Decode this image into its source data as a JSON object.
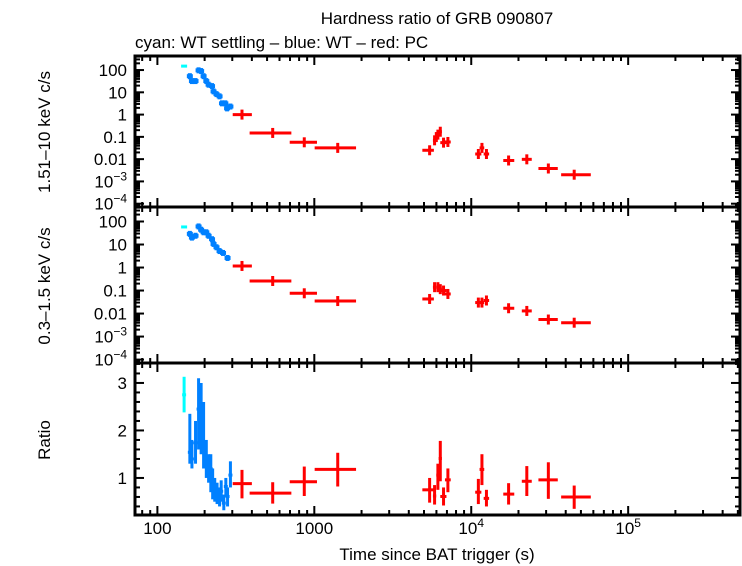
{
  "chart_data": [
    {
      "type": "scatter",
      "title": "Hardness ratio of GRB 090807",
      "subtitle": "cyan: WT settling – blue: WT – red: PC",
      "ylabel": "1.51–10 keV c/s",
      "xlabel": "Time since BAT trigger (s)",
      "xscale": "log",
      "yscale": "log",
      "xlim": [
        72,
        516000
      ],
      "ylim": [
        7.1e-05,
        427
      ],
      "xticklabels": [
        "100",
        "1000",
        "10^4",
        "10^5"
      ],
      "yticklabels": [
        "100",
        "10",
        "1",
        "0.1",
        "0.01",
        "10^-3",
        "10^-4"
      ],
      "colors": {
        "cyan": "#00ffff",
        "blue": "#0080ff",
        "red": "#ff0000"
      },
      "cyan": [
        [
          148,
          150
        ]
      ],
      "blue": [
        [
          161,
          53
        ],
        [
          166,
          32
        ],
        [
          175,
          32
        ],
        [
          183,
          97
        ],
        [
          190,
          90
        ],
        [
          197,
          53
        ],
        [
          205,
          32
        ],
        [
          212,
          22
        ],
        [
          223,
          19
        ],
        [
          228,
          11
        ],
        [
          238,
          8.3
        ],
        [
          249,
          6.6
        ],
        [
          258,
          3.2
        ],
        [
          271,
          3.2
        ],
        [
          278,
          1.9
        ],
        [
          292,
          2.3
        ]
      ],
      "red": [
        {
          "t": 346,
          "tlo": 302,
          "thi": 400,
          "v": 1.0
        },
        {
          "t": 543,
          "tlo": 387,
          "thi": 714,
          "v": 0.15
        },
        {
          "t": 863,
          "tlo": 697,
          "thi": 1040,
          "v": 0.057
        },
        {
          "t": 1410,
          "tlo": 1005,
          "thi": 1845,
          "v": 0.032
        },
        {
          "t": 5430,
          "tlo": 4880,
          "thi": 5780,
          "v": 0.025
        },
        {
          "t": 5840,
          "tlo": 5700,
          "thi": 5980,
          "v": 0.07
        },
        {
          "t": 5990,
          "tlo": 5850,
          "thi": 6130,
          "v": 0.098
        },
        {
          "t": 6130,
          "tlo": 5990,
          "thi": 6270,
          "v": 0.126
        },
        {
          "t": 6350,
          "tlo": 6200,
          "thi": 6500,
          "v": 0.17
        },
        {
          "t": 6660,
          "tlo": 6350,
          "thi": 6950,
          "v": 0.055
        },
        {
          "t": 7100,
          "tlo": 6800,
          "thi": 7400,
          "v": 0.059
        },
        {
          "t": 11100,
          "tlo": 10600,
          "thi": 11600,
          "v": 0.017
        },
        {
          "t": 11700,
          "tlo": 11300,
          "thi": 12100,
          "v": 0.032
        },
        {
          "t": 12500,
          "tlo": 12000,
          "thi": 13000,
          "v": 0.017
        },
        {
          "t": 17300,
          "tlo": 16000,
          "thi": 18800,
          "v": 0.0087
        },
        {
          "t": 22600,
          "tlo": 21000,
          "thi": 24300,
          "v": 0.0098
        },
        {
          "t": 31000,
          "tlo": 26800,
          "thi": 35600,
          "v": 0.0038
        },
        {
          "t": 45300,
          "tlo": 37400,
          "thi": 57800,
          "v": 0.002
        }
      ]
    },
    {
      "type": "scatter",
      "ylabel": "0.3–1.5 keV c/s",
      "xscale": "log",
      "yscale": "log",
      "xlim": [
        72,
        516000
      ],
      "ylim": [
        7.1e-05,
        427
      ],
      "yticklabels": [
        "100",
        "10",
        "1",
        "0.1",
        "0.01",
        "10^-3",
        "10^-4"
      ],
      "cyan": [
        [
          148,
          58
        ]
      ],
      "blue": [
        [
          161,
          29
        ],
        [
          166,
          20
        ],
        [
          175,
          24
        ],
        [
          183,
          61
        ],
        [
          190,
          44
        ],
        [
          197,
          34
        ],
        [
          205,
          34
        ],
        [
          212,
          24
        ],
        [
          223,
          17
        ],
        [
          228,
          10.6
        ],
        [
          238,
          7.6
        ],
        [
          249,
          5.2
        ],
        [
          262,
          4.3
        ],
        [
          280,
          2.6
        ]
      ],
      "red": [
        {
          "t": 346,
          "tlo": 302,
          "thi": 400,
          "v": 1.17
        },
        {
          "t": 543,
          "tlo": 387,
          "thi": 714,
          "v": 0.26
        },
        {
          "t": 863,
          "tlo": 697,
          "thi": 1040,
          "v": 0.076
        },
        {
          "t": 1410,
          "tlo": 1005,
          "thi": 1845,
          "v": 0.035
        },
        {
          "t": 5430,
          "tlo": 4880,
          "thi": 5780,
          "v": 0.043
        },
        {
          "t": 5840,
          "tlo": 5700,
          "thi": 5980,
          "v": 0.14
        },
        {
          "t": 6130,
          "tlo": 5990,
          "thi": 6270,
          "v": 0.14
        },
        {
          "t": 6350,
          "tlo": 6200,
          "thi": 6500,
          "v": 0.115
        },
        {
          "t": 6660,
          "tlo": 6350,
          "thi": 6950,
          "v": 0.1
        },
        {
          "t": 7100,
          "tlo": 6800,
          "thi": 7400,
          "v": 0.071
        },
        {
          "t": 11100,
          "tlo": 10600,
          "thi": 11600,
          "v": 0.03
        },
        {
          "t": 11700,
          "tlo": 11300,
          "thi": 12100,
          "v": 0.03
        },
        {
          "t": 12500,
          "tlo": 12000,
          "thi": 13000,
          "v": 0.037
        },
        {
          "t": 17300,
          "tlo": 16000,
          "thi": 18800,
          "v": 0.017
        },
        {
          "t": 22600,
          "tlo": 21000,
          "thi": 24300,
          "v": 0.013
        },
        {
          "t": 31000,
          "tlo": 26800,
          "thi": 35600,
          "v": 0.0055
        },
        {
          "t": 45300,
          "tlo": 37400,
          "thi": 57800,
          "v": 0.004
        }
      ]
    },
    {
      "type": "scatter",
      "ylabel": "Ratio",
      "xscale": "log",
      "yscale": "linear",
      "xlim": [
        72,
        516000
      ],
      "ylim": [
        0.22,
        3.42
      ],
      "yticklabels": [
        "3",
        "2",
        "1"
      ],
      "cyan": [
        {
          "t": 148,
          "v": 2.75,
          "lo": 2.38,
          "hi": 3.13
        }
      ],
      "blue": [
        {
          "t": 161,
          "v": 1.54,
          "lo": 1.3,
          "hi": 2.35
        },
        {
          "t": 166,
          "v": 1.4,
          "lo": 1.2,
          "hi": 1.8
        },
        {
          "t": 175,
          "v": 1.74,
          "lo": 1.3,
          "hi": 2.2
        },
        {
          "t": 183,
          "v": 2.45,
          "lo": 1.6,
          "hi": 3.1
        },
        {
          "t": 190,
          "v": 2.1,
          "lo": 1.5,
          "hi": 3.0
        },
        {
          "t": 197,
          "v": 1.54,
          "lo": 1.2,
          "hi": 2.6
        },
        {
          "t": 205,
          "v": 1.4,
          "lo": 1.0,
          "hi": 1.8
        },
        {
          "t": 212,
          "v": 1.26,
          "lo": 0.9,
          "hi": 1.5
        },
        {
          "t": 219,
          "v": 1.19,
          "lo": 0.7,
          "hi": 1.5
        },
        {
          "t": 225,
          "v": 0.82,
          "lo": 0.55,
          "hi": 1.2
        },
        {
          "t": 232,
          "v": 0.75,
          "lo": 0.5,
          "hi": 1.0
        },
        {
          "t": 240,
          "v": 0.68,
          "lo": 0.45,
          "hi": 0.9
        },
        {
          "t": 249,
          "v": 0.61,
          "lo": 0.4,
          "hi": 0.8
        },
        {
          "t": 255,
          "v": 0.72,
          "lo": 0.5,
          "hi": 0.95
        },
        {
          "t": 265,
          "v": 0.47,
          "lo": 0.32,
          "hi": 0.65
        },
        {
          "t": 273,
          "v": 0.82,
          "lo": 0.6,
          "hi": 1.0
        },
        {
          "t": 280,
          "v": 0.61,
          "lo": 0.4,
          "hi": 0.8
        },
        {
          "t": 292,
          "v": 1.06,
          "lo": 0.8,
          "hi": 1.35
        }
      ],
      "red": [
        {
          "t": 346,
          "tlo": 302,
          "thi": 400,
          "v": 0.88,
          "lo": 0.57,
          "hi": 1.17
        },
        {
          "t": 543,
          "tlo": 387,
          "thi": 714,
          "v": 0.68,
          "lo": 0.46,
          "hi": 0.91
        },
        {
          "t": 863,
          "tlo": 697,
          "thi": 1040,
          "v": 0.92,
          "lo": 0.62,
          "hi": 1.24
        },
        {
          "t": 1410,
          "tlo": 1005,
          "thi": 1845,
          "v": 1.18,
          "lo": 0.82,
          "hi": 1.53
        },
        {
          "t": 5430,
          "tlo": 4880,
          "thi": 5780,
          "v": 0.75,
          "lo": 0.48,
          "hi": 1.0
        },
        {
          "t": 5840,
          "tlo": 5700,
          "thi": 5980,
          "v": 0.62,
          "lo": 0.44,
          "hi": 0.85
        },
        {
          "t": 6130,
          "tlo": 5990,
          "thi": 6270,
          "v": 1.06,
          "lo": 0.75,
          "hi": 1.3
        },
        {
          "t": 6350,
          "tlo": 6200,
          "thi": 6500,
          "v": 1.41,
          "lo": 0.93,
          "hi": 1.78
        },
        {
          "t": 6660,
          "tlo": 6350,
          "thi": 6950,
          "v": 0.61,
          "lo": 0.42,
          "hi": 0.8
        },
        {
          "t": 7100,
          "tlo": 6800,
          "thi": 7400,
          "v": 0.96,
          "lo": 0.7,
          "hi": 1.2
        },
        {
          "t": 11100,
          "tlo": 10600,
          "thi": 11600,
          "v": 0.7,
          "lo": 0.45,
          "hi": 0.98
        },
        {
          "t": 11700,
          "tlo": 11300,
          "thi": 12100,
          "v": 1.18,
          "lo": 0.85,
          "hi": 1.5
        },
        {
          "t": 12500,
          "tlo": 12000,
          "thi": 13000,
          "v": 0.57,
          "lo": 0.4,
          "hi": 0.75
        },
        {
          "t": 17300,
          "tlo": 16000,
          "thi": 18800,
          "v": 0.66,
          "lo": 0.44,
          "hi": 0.89
        },
        {
          "t": 22600,
          "tlo": 21000,
          "thi": 24300,
          "v": 0.93,
          "lo": 0.62,
          "hi": 1.25
        },
        {
          "t": 31000,
          "tlo": 26800,
          "thi": 35600,
          "v": 0.96,
          "lo": 0.56,
          "hi": 1.33
        },
        {
          "t": 45300,
          "tlo": 37400,
          "thi": 57800,
          "v": 0.6,
          "lo": 0.35,
          "hi": 0.84
        }
      ]
    }
  ]
}
